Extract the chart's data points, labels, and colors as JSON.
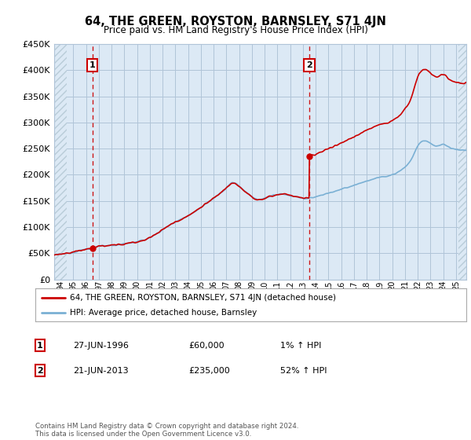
{
  "title": "64, THE GREEN, ROYSTON, BARNSLEY, S71 4JN",
  "subtitle": "Price paid vs. HM Land Registry's House Price Index (HPI)",
  "ylabel_ticks": [
    "£0",
    "£50K",
    "£100K",
    "£150K",
    "£200K",
    "£250K",
    "£300K",
    "£350K",
    "£400K",
    "£450K"
  ],
  "ytick_values": [
    0,
    50000,
    100000,
    150000,
    200000,
    250000,
    300000,
    350000,
    400000,
    450000
  ],
  "ylim": [
    0,
    450000
  ],
  "xlim_start": 1993.5,
  "xlim_end": 2025.8,
  "hpi_color": "#7ab0d4",
  "price_color": "#cc0000",
  "vline_color": "#cc0000",
  "bg_color": "#dce9f5",
  "marker1_x": 1996.5,
  "marker1_y": 60000,
  "marker2_x": 2013.5,
  "marker2_y": 235000,
  "legend_label1": "64, THE GREEN, ROYSTON, BARNSLEY, S71 4JN (detached house)",
  "legend_label2": "HPI: Average price, detached house, Barnsley",
  "table_row1": [
    "1",
    "27-JUN-1996",
    "£60,000",
    "1% ↑ HPI"
  ],
  "table_row2": [
    "2",
    "21-JUN-2013",
    "£235,000",
    "52% ↑ HPI"
  ],
  "footer": "Contains HM Land Registry data © Crown copyright and database right 2024.\nThis data is licensed under the Open Government Licence v3.0.",
  "grid_color": "#b0c4d8",
  "hatch_color": "#b8ccd8"
}
